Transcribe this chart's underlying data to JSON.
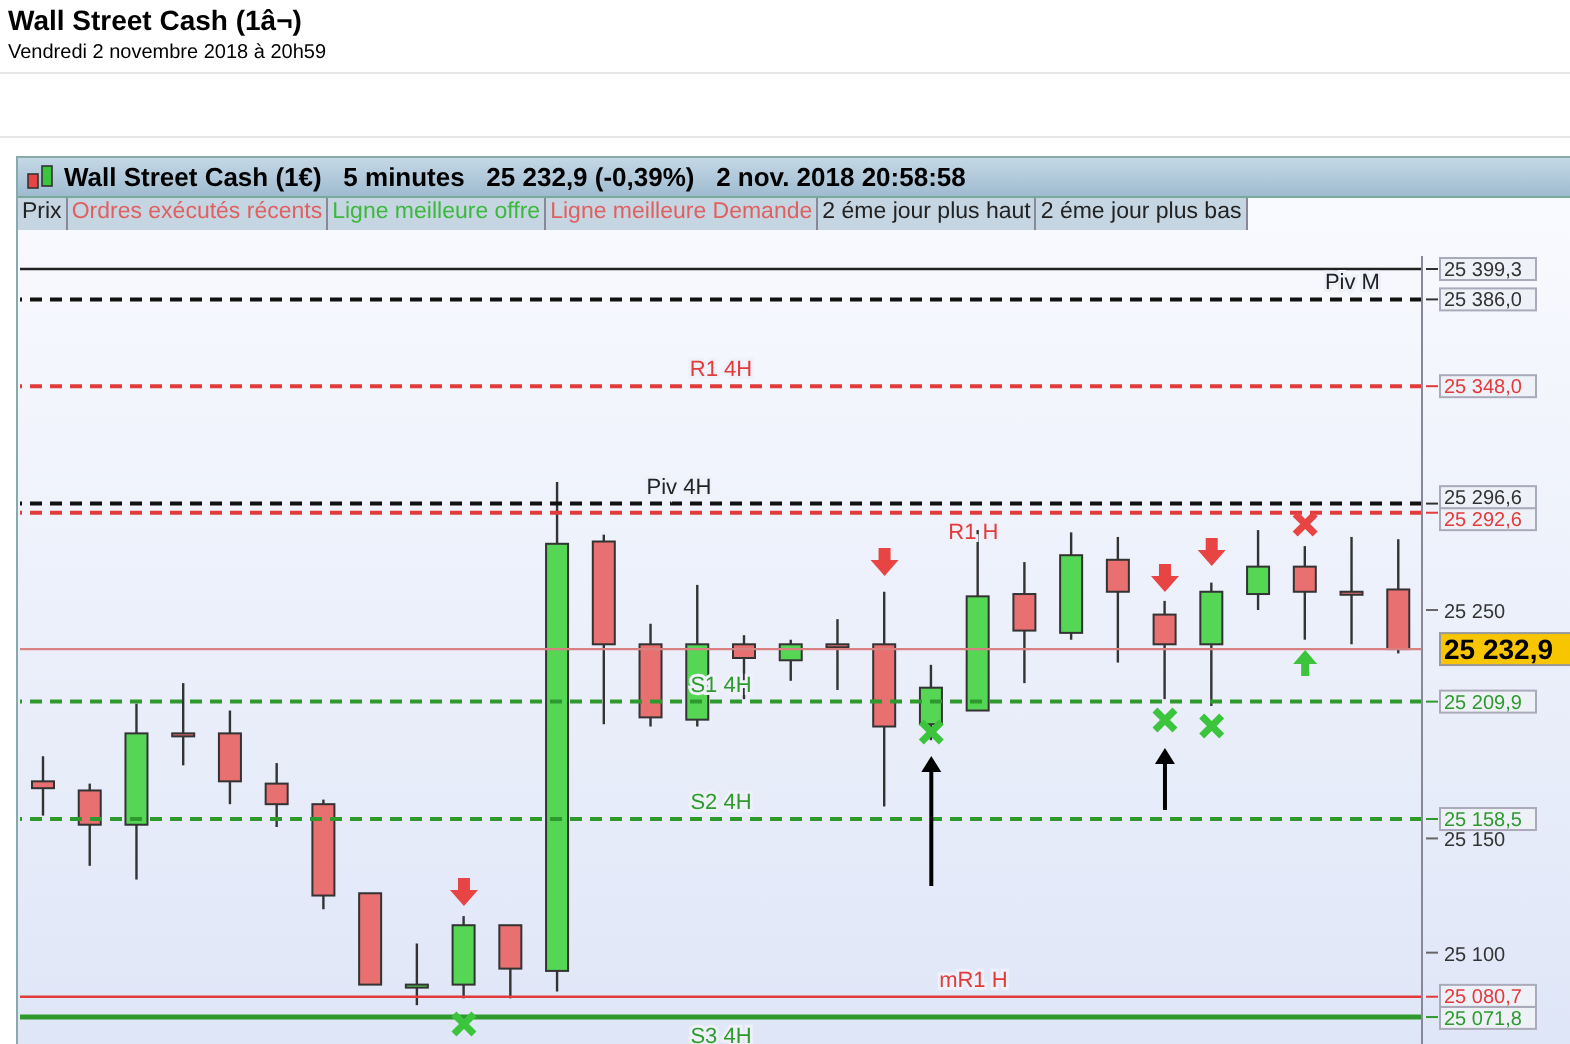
{
  "chart_data": {
    "type": "candlestick",
    "title": "Wall Street Cash (1â¬)",
    "subtitle": "Vendredi 2 novembre 2018 à 20h59",
    "annotations": [
      "Wall Street Cash (1€)   5 minutes   25 232,9 (-0,39%)   2 nov. 2018 20:58:58",
      "Prix",
      "Ordres exécutés récents",
      "Ligne meilleure offre",
      "Ligne meilleure Demande",
      "2 éme jour plus haut",
      "2 éme jour plus bas"
    ],
    "categories": [
      null,
      null,
      null,
      null,
      null,
      null,
      null,
      null,
      null,
      null,
      null,
      null,
      null,
      null,
      null,
      null,
      null,
      null,
      null,
      null,
      null,
      null,
      null,
      null,
      null,
      null,
      null,
      null,
      null,
      null
    ],
    "ohlc": [
      [
        25175,
        25186,
        25160,
        25172
      ],
      [
        25171,
        25174,
        25138,
        25156
      ],
      [
        25156,
        25209,
        25132,
        25196
      ],
      [
        25196,
        25218,
        25182,
        25196
      ],
      [
        25196,
        25206,
        25165,
        25175
      ],
      [
        25174,
        25183,
        25155,
        25165
      ],
      [
        25165,
        25167,
        25119,
        25125
      ],
      [
        25126,
        25126,
        25086,
        25086
      ],
      [
        25085,
        25104,
        25077,
        25086
      ],
      [
        25086,
        25116,
        25080,
        25112
      ],
      [
        25112,
        25112,
        25080,
        25093
      ],
      [
        25092,
        25306,
        25083,
        25279
      ],
      [
        25280,
        25283,
        25200,
        25235
      ],
      [
        25235,
        25244,
        25199,
        25203
      ],
      [
        25202,
        25261,
        25199,
        25235
      ],
      [
        25235,
        25239,
        25211,
        25229
      ],
      [
        25228,
        25237,
        25219,
        25235
      ],
      [
        25235,
        25246,
        25215,
        25235
      ],
      [
        25235,
        25258,
        25164,
        25199
      ],
      [
        25200,
        25226,
        25193,
        25216
      ],
      [
        25206,
        25285,
        25206,
        25256
      ],
      [
        25257,
        25271,
        25218,
        25241
      ],
      [
        25240,
        25284,
        25237,
        25274
      ],
      [
        25272,
        25282,
        25227,
        25258
      ],
      [
        25248,
        25254,
        25211,
        25235
      ],
      [
        25235,
        25262,
        25208,
        25258
      ],
      [
        25257,
        25285,
        25250,
        25269
      ],
      [
        25269,
        25278,
        25237,
        25258
      ],
      [
        25258,
        25282,
        25235,
        25258
      ],
      [
        25259,
        25281,
        25231,
        25232.9
      ]
    ],
    "colors": [
      "#e87070",
      "#e87070",
      "#55d655",
      "#e87070",
      "#e87070",
      "#e87070",
      "#e87070",
      "#e87070",
      "#55d655",
      "#55d655",
      "#e87070",
      "#55d655",
      "#e87070",
      "#e87070",
      "#55d655",
      "#e87070",
      "#55d655",
      "#e87070",
      "#e87070",
      "#55d655",
      "#55d655",
      "#e87070",
      "#55d655",
      "#e87070",
      "#e87070",
      "#55d655",
      "#55d655",
      "#e87070",
      "#e87070",
      "#e87070"
    ],
    "ylim": [
      25060,
      25405
    ],
    "yticks": [
      {
        "value": 25071.8,
        "label": "25 071,8"
      },
      {
        "value": 25080.7,
        "label": "25 080,7"
      },
      {
        "value": 25100,
        "label": "25 100"
      },
      {
        "value": 25150,
        "label": "25 150"
      },
      {
        "value": 25158.5,
        "label": "25 158,5"
      },
      {
        "value": 25209.9,
        "label": "25 209,9"
      },
      {
        "value": 25232.9,
        "label": "25 232,9"
      },
      {
        "value": 25250,
        "label": "25 250"
      },
      {
        "value": 25292.6,
        "label": "25 292,6"
      },
      {
        "value": 25296.6,
        "label": "25 296,6"
      },
      {
        "value": 25348.0,
        "label": "25 348,0"
      },
      {
        "value": 25386.0,
        "label": "25 386,0"
      },
      {
        "value": 25399.3,
        "label": "25 399,3"
      }
    ],
    "ref_lines": [
      {
        "axis": "y",
        "value": 25399.3,
        "label": null,
        "color": "#222222",
        "line_style": "solid"
      },
      {
        "axis": "y",
        "value": 25386.0,
        "label": "Piv M",
        "color": "#111111",
        "line_style": "dashed"
      },
      {
        "axis": "y",
        "value": 25348.0,
        "label": "R1 4H",
        "color": "#e23b3b",
        "line_style": "dashed"
      },
      {
        "axis": "y",
        "value": 25296.6,
        "label": "Piv 4H",
        "color": "#111111",
        "line_style": "dashed"
      },
      {
        "axis": "y",
        "value": 25292.6,
        "label": "R1 H",
        "color": "#e23b3b",
        "line_style": "dashed"
      },
      {
        "axis": "y",
        "value": 25232.9,
        "label": null,
        "color": "#d98080",
        "line_style": "solid"
      },
      {
        "axis": "y",
        "value": 25209.9,
        "label": "S1 4H",
        "color": "#2e9a2e",
        "line_style": "dashed"
      },
      {
        "axis": "y",
        "value": 25158.5,
        "label": "S2 4H",
        "color": "#2e9a2e",
        "line_style": "dashed"
      },
      {
        "axis": "y",
        "value": 25080.7,
        "label": "mR1 H",
        "color": "#e23b3b",
        "line_style": "solid"
      },
      {
        "axis": "y",
        "value": 25071.8,
        "label": "S3 4H",
        "color": "#2e9a2e",
        "line_style": "solid"
      }
    ]
  }
}
